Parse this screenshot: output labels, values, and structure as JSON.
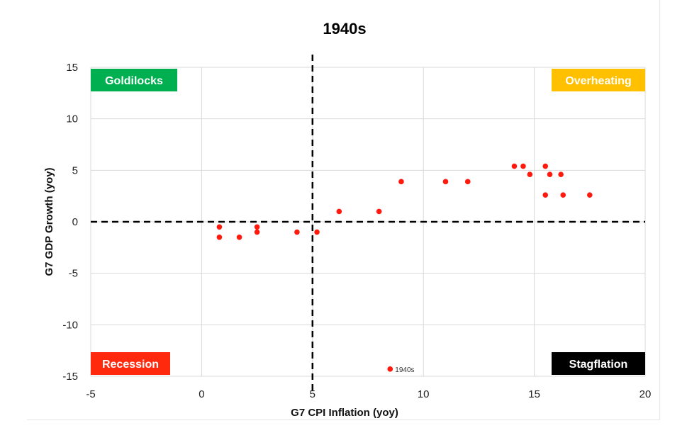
{
  "chart_data": {
    "type": "scatter",
    "title": "1940s",
    "xlabel": "G7 CPI Inflation (yoy)",
    "ylabel": "G7 GDP Growth (yoy)",
    "xlim": [
      -5,
      20
    ],
    "ylim": [
      -15,
      15
    ],
    "xticks": [
      -5,
      0,
      5,
      10,
      15,
      20
    ],
    "yticks": [
      -15,
      -10,
      -5,
      0,
      5,
      10,
      15
    ],
    "grid": true,
    "reference_lines": {
      "x": 5,
      "y": 0
    },
    "series": [
      {
        "name": "1940s",
        "color": "#ff1a0d",
        "points": [
          [
            0.8,
            -0.5
          ],
          [
            0.8,
            -1.5
          ],
          [
            1.7,
            -1.5
          ],
          [
            2.5,
            -0.5
          ],
          [
            2.5,
            -1.0
          ],
          [
            4.3,
            -1.0
          ],
          [
            5.2,
            -1.0
          ],
          [
            6.2,
            1.0
          ],
          [
            8.0,
            1.0
          ],
          [
            9.0,
            3.9
          ],
          [
            11.0,
            3.9
          ],
          [
            12.0,
            3.9
          ],
          [
            14.1,
            5.4
          ],
          [
            14.5,
            5.4
          ],
          [
            14.8,
            4.6
          ],
          [
            15.5,
            2.6
          ],
          [
            15.5,
            5.4
          ],
          [
            15.7,
            4.6
          ],
          [
            16.2,
            4.6
          ],
          [
            16.3,
            2.6
          ],
          [
            17.5,
            2.6
          ],
          [
            8.5,
            -14.3
          ]
        ],
        "point_label": {
          "index": 21,
          "text": "1940s"
        }
      }
    ],
    "quadrant_labels": [
      {
        "text": "Goldilocks",
        "color": "#00b050",
        "position": "top-left"
      },
      {
        "text": "Overheating",
        "color": "#ffc000",
        "position": "top-right"
      },
      {
        "text": "Recession",
        "color": "#ff2a0d",
        "position": "bottom-left"
      },
      {
        "text": "Stagflation",
        "color": "#000000",
        "position": "bottom-right"
      }
    ]
  }
}
